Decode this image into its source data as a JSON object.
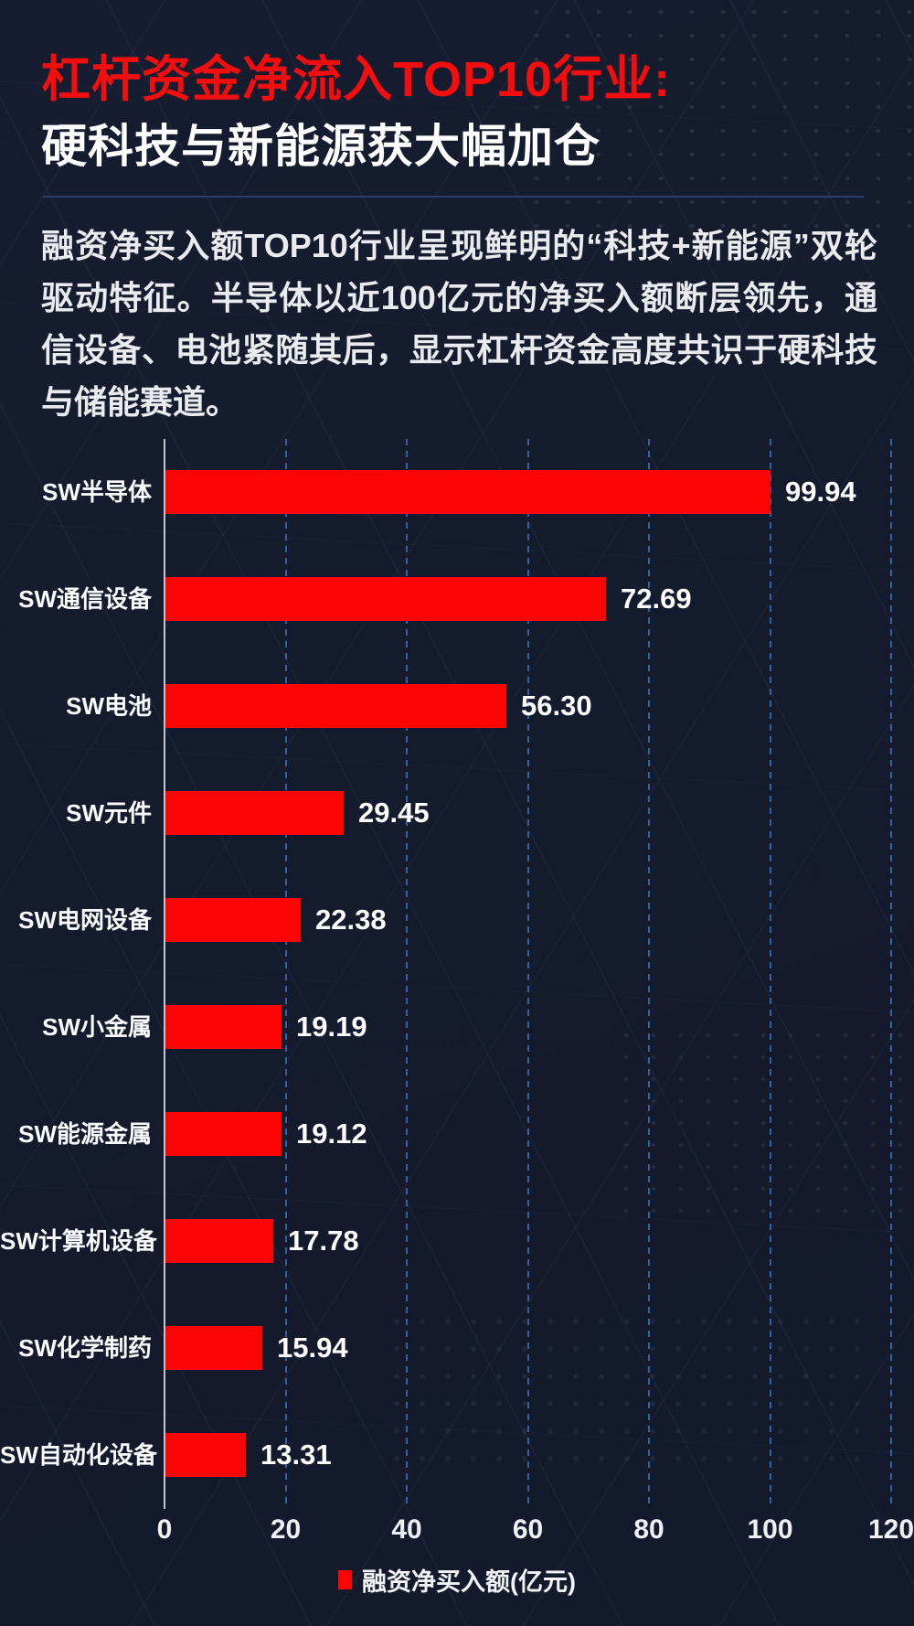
{
  "header": {
    "title": "杠杆资金净流入TOP10行业:",
    "subtitle": "硬科技与新能源获大幅加仓",
    "description": "融资净买入额TOP10行业呈现鲜明的“科技+新能源”双轮驱动特征。半导体以近100亿元的净买入额断层领先，通信设备、电池紧随其后，显示杠杆资金高度共识于硬科技与储能赛道。"
  },
  "colors": {
    "background": "#141b2c",
    "title_red": "#f20e0e",
    "bar_red": "#fb0404",
    "gridline_blue": "#3e6bb4",
    "axis_gray": "#c2c6cf",
    "text_white": "#ffffff"
  },
  "chart_data": {
    "type": "bar",
    "orientation": "horizontal",
    "title": "",
    "xlabel": "",
    "ylabel": "",
    "categories": [
      "SW半导体",
      "SW通信设备",
      "SW电池",
      "SW元件",
      "SW电网设备",
      "SW小金属",
      "SW能源金属",
      "SW计算机设备",
      "SW化学制药",
      "SW自动化设备"
    ],
    "values": [
      99.94,
      72.69,
      56.3,
      29.45,
      22.38,
      19.19,
      19.12,
      17.78,
      15.94,
      13.31
    ],
    "value_labels": [
      "99.94",
      "72.69",
      "56.30",
      "29.45",
      "22.38",
      "19.19",
      "19.12",
      "17.78",
      "15.94",
      "13.31"
    ],
    "xlim": [
      0,
      120
    ],
    "x_ticks": [
      0,
      20,
      40,
      60,
      80,
      100,
      120
    ],
    "x_tick_labels": [
      "0",
      "20",
      "40",
      "60",
      "80",
      "100",
      "120"
    ],
    "grid": "dashed-vertical",
    "legend": {
      "label": "融资净买入额(亿元)",
      "position": "bottom"
    },
    "series": [
      {
        "name": "融资净买入额(亿元)",
        "color": "#fb0404"
      }
    ]
  }
}
